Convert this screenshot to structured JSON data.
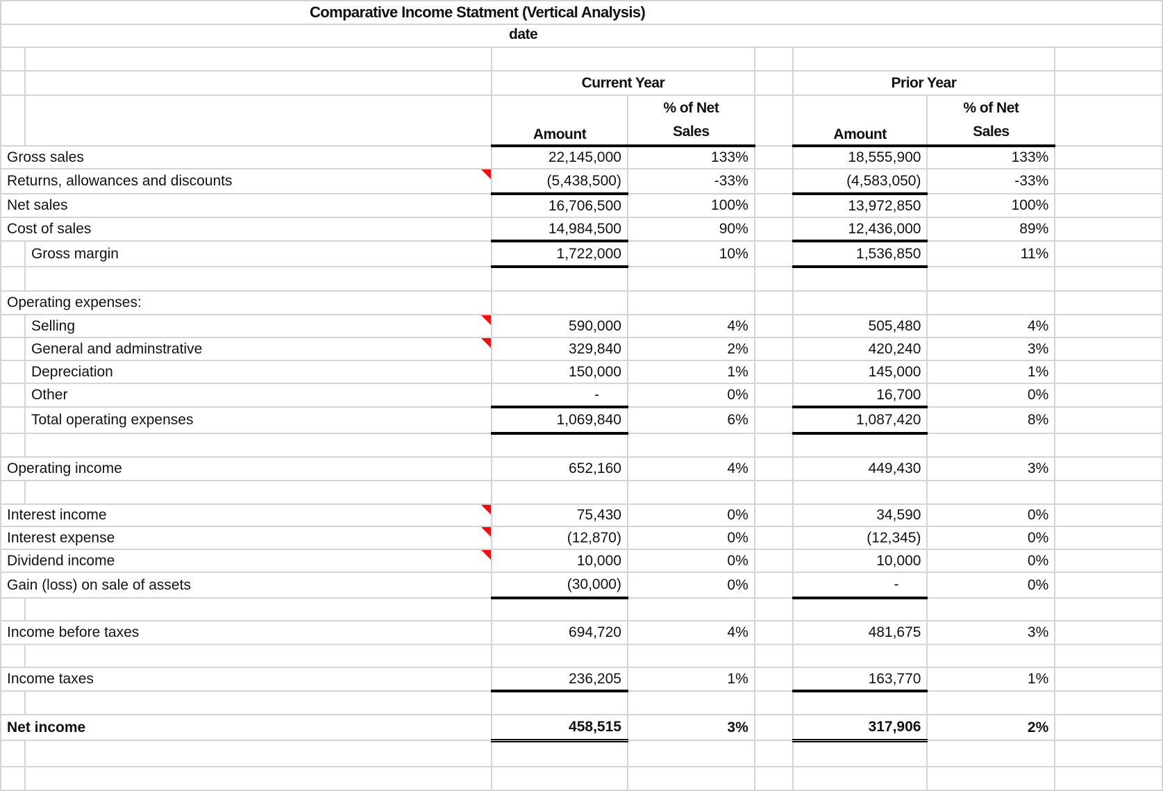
{
  "title": "Comparative Income Statment (Vertical Analysis)",
  "subtitle": "date",
  "headers": {
    "current_year": "Current Year",
    "prior_year": "Prior Year",
    "amount": "Amount",
    "pct_line1": "% of Net",
    "pct_line2": "Sales"
  },
  "colors": {
    "comment_marker": "#e11111",
    "grid": "#d4d4d4"
  },
  "rows": [
    {
      "label": "Gross sales",
      "cy": "22,145,000",
      "cyp": "133%",
      "py": "18,555,900",
      "pyp": "133%"
    },
    {
      "label": "Returns, allowances and discounts",
      "cy": "(5,438,500)",
      "cyp": "-33%",
      "py": "(4,583,050)",
      "pyp": "-33%",
      "comment": true,
      "ul": true
    },
    {
      "label": "Net sales",
      "cy": "16,706,500",
      "cyp": "100%",
      "py": "13,972,850",
      "pyp": "100%"
    },
    {
      "label": "Cost of sales",
      "cy": "14,984,500",
      "cyp": "90%",
      "py": "12,436,000",
      "pyp": "89%",
      "ul": true
    },
    {
      "label": "Gross margin",
      "cy": "1,722,000",
      "cyp": "10%",
      "py": "1,536,850",
      "pyp": "11%",
      "indent": true,
      "ul": true
    },
    {
      "blank": true
    },
    {
      "label": "Operating expenses:"
    },
    {
      "label": "Selling",
      "cy": "590,000",
      "cyp": "4%",
      "py": "505,480",
      "pyp": "4%",
      "indent": true,
      "comment": true
    },
    {
      "label": "General and adminstrative",
      "cy": "329,840",
      "cyp": "2%",
      "py": "420,240",
      "pyp": "3%",
      "indent": true,
      "comment": true
    },
    {
      "label": "Depreciation",
      "cy": "150,000",
      "cyp": "1%",
      "py": "145,000",
      "pyp": "1%",
      "indent": true
    },
    {
      "label": "Other",
      "cy": "-",
      "cyp": "0%",
      "py": "16,700",
      "pyp": "0%",
      "indent": true,
      "ul": true
    },
    {
      "label": "Total operating expenses",
      "cy": "1,069,840",
      "cyp": "6%",
      "py": "1,087,420",
      "pyp": "8%",
      "indent": true,
      "ul": true
    },
    {
      "blank": true
    },
    {
      "label": "Operating income",
      "cy": "652,160",
      "cyp": "4%",
      "py": "449,430",
      "pyp": "3%"
    },
    {
      "blank": true
    },
    {
      "label": "Interest income",
      "cy": "75,430",
      "cyp": "0%",
      "py": "34,590",
      "pyp": "0%",
      "comment": true
    },
    {
      "label": "Interest expense",
      "cy": "(12,870)",
      "cyp": "0%",
      "py": "(12,345)",
      "pyp": "0%",
      "comment": true
    },
    {
      "label": "Dividend income",
      "cy": "10,000",
      "cyp": "0%",
      "py": "10,000",
      "pyp": "0%",
      "comment": true
    },
    {
      "label": "Gain (loss) on sale of assets",
      "cy": "(30,000)",
      "cyp": "0%",
      "py": "-",
      "pyp": "0%",
      "ul": true
    },
    {
      "blank": true
    },
    {
      "label": "Income before taxes",
      "cy": "694,720",
      "cyp": "4%",
      "py": "481,675",
      "pyp": "3%"
    },
    {
      "blank": true
    },
    {
      "label": "Income taxes",
      "cy": "236,205",
      "cyp": "1%",
      "py": "163,770",
      "pyp": "1%",
      "ul": true
    },
    {
      "blank": true
    },
    {
      "label": "Net income",
      "cy": "458,515",
      "cyp": "3%",
      "py": "317,906",
      "pyp": "2%",
      "bold": true,
      "dbl": true
    },
    {
      "blank": true
    },
    {
      "blank": true
    }
  ]
}
